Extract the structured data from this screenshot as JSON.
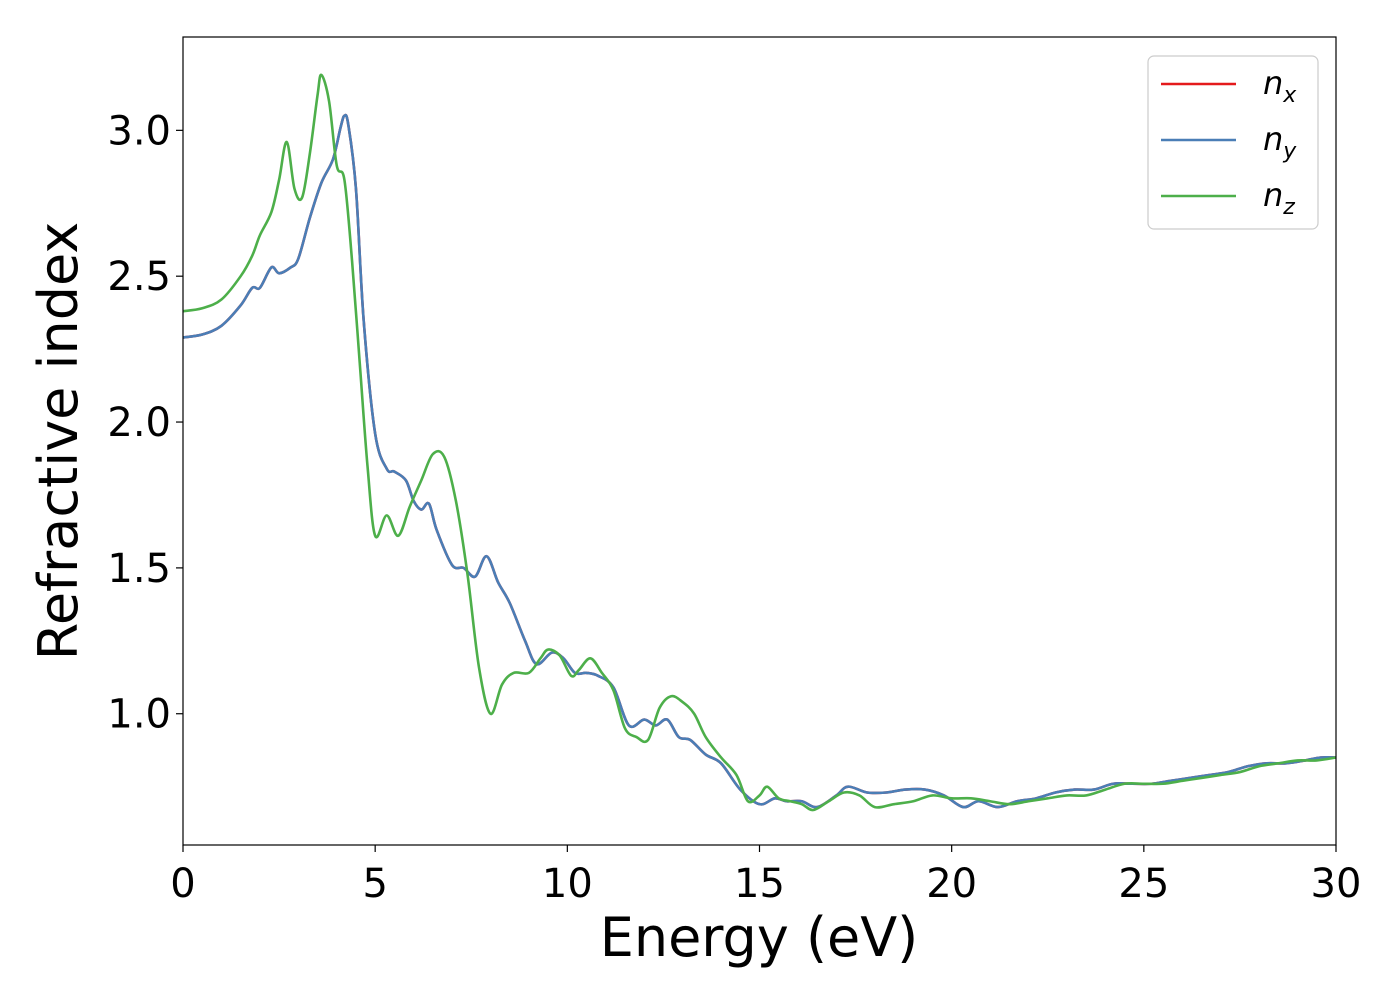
{
  "chart_data": {
    "type": "line",
    "xlabel": "Energy (eV)",
    "ylabel": "Refractive index",
    "xlim": [
      0,
      30
    ],
    "ylim": [
      0.55,
      3.32
    ],
    "xticks": [
      0,
      5,
      10,
      15,
      20,
      25,
      30
    ],
    "xtick_labels": [
      "0",
      "5",
      "10",
      "15",
      "20",
      "25",
      "30"
    ],
    "yticks": [
      1.0,
      1.5,
      2.0,
      2.5,
      3.0
    ],
    "ytick_labels": [
      "1.0",
      "1.5",
      "2.0",
      "2.5",
      "3.0"
    ],
    "grid": false,
    "legend_position": "top-right",
    "series": [
      {
        "name": "n_x",
        "legend_base": "n",
        "legend_sub": "x",
        "color": "#e41a1c",
        "x": [
          0,
          0.5,
          1.0,
          1.5,
          1.8,
          2.0,
          2.3,
          2.5,
          2.8,
          3.0,
          3.3,
          3.6,
          3.9,
          4.1,
          4.2,
          4.3,
          4.5,
          4.7,
          5.0,
          5.3,
          5.5,
          5.8,
          6.0,
          6.2,
          6.4,
          6.6,
          7.0,
          7.3,
          7.6,
          7.9,
          8.2,
          8.5,
          8.9,
          9.2,
          9.6,
          9.9,
          10.2,
          10.5,
          10.8,
          11.2,
          11.6,
          12.0,
          12.3,
          12.6,
          12.9,
          13.2,
          13.6,
          14.0,
          14.5,
          15.0,
          15.4,
          15.7,
          16.1,
          16.5,
          17.0,
          17.3,
          17.8,
          18.3,
          18.8,
          19.3,
          19.8,
          20.3,
          20.7,
          21.2,
          21.7,
          22.2,
          22.7,
          23.2,
          23.7,
          24.2,
          24.7,
          25.2,
          25.7,
          26.2,
          26.7,
          27.2,
          27.7,
          28.2,
          28.7,
          29.2,
          29.6,
          30.0
        ],
        "y": [
          2.29,
          2.3,
          2.33,
          2.4,
          2.46,
          2.46,
          2.53,
          2.51,
          2.53,
          2.56,
          2.7,
          2.82,
          2.9,
          3.01,
          3.05,
          3.02,
          2.8,
          2.35,
          1.96,
          1.84,
          1.83,
          1.8,
          1.73,
          1.7,
          1.72,
          1.63,
          1.51,
          1.5,
          1.47,
          1.54,
          1.45,
          1.38,
          1.25,
          1.17,
          1.21,
          1.19,
          1.14,
          1.14,
          1.13,
          1.09,
          0.96,
          0.98,
          0.96,
          0.98,
          0.92,
          0.91,
          0.86,
          0.83,
          0.74,
          0.69,
          0.71,
          0.7,
          0.7,
          0.68,
          0.72,
          0.75,
          0.73,
          0.73,
          0.74,
          0.74,
          0.72,
          0.68,
          0.7,
          0.68,
          0.7,
          0.71,
          0.73,
          0.74,
          0.74,
          0.76,
          0.76,
          0.76,
          0.77,
          0.78,
          0.79,
          0.8,
          0.82,
          0.83,
          0.83,
          0.84,
          0.85,
          0.85
        ]
      },
      {
        "name": "n_y",
        "legend_base": "n",
        "legend_sub": "y",
        "color": "#4a7eb6",
        "x": [
          0,
          0.5,
          1.0,
          1.5,
          1.8,
          2.0,
          2.3,
          2.5,
          2.8,
          3.0,
          3.3,
          3.6,
          3.9,
          4.1,
          4.2,
          4.3,
          4.5,
          4.7,
          5.0,
          5.3,
          5.5,
          5.8,
          6.0,
          6.2,
          6.4,
          6.6,
          7.0,
          7.3,
          7.6,
          7.9,
          8.2,
          8.5,
          8.9,
          9.2,
          9.6,
          9.9,
          10.2,
          10.5,
          10.8,
          11.2,
          11.6,
          12.0,
          12.3,
          12.6,
          12.9,
          13.2,
          13.6,
          14.0,
          14.5,
          15.0,
          15.4,
          15.7,
          16.1,
          16.5,
          17.0,
          17.3,
          17.8,
          18.3,
          18.8,
          19.3,
          19.8,
          20.3,
          20.7,
          21.2,
          21.7,
          22.2,
          22.7,
          23.2,
          23.7,
          24.2,
          24.7,
          25.2,
          25.7,
          26.2,
          26.7,
          27.2,
          27.7,
          28.2,
          28.7,
          29.2,
          29.6,
          30.0
        ],
        "y": [
          2.29,
          2.3,
          2.33,
          2.4,
          2.46,
          2.46,
          2.53,
          2.51,
          2.53,
          2.56,
          2.7,
          2.82,
          2.9,
          3.01,
          3.05,
          3.02,
          2.8,
          2.35,
          1.96,
          1.84,
          1.83,
          1.8,
          1.73,
          1.7,
          1.72,
          1.63,
          1.51,
          1.5,
          1.47,
          1.54,
          1.45,
          1.38,
          1.25,
          1.17,
          1.21,
          1.19,
          1.14,
          1.14,
          1.13,
          1.09,
          0.96,
          0.98,
          0.96,
          0.98,
          0.92,
          0.91,
          0.86,
          0.83,
          0.74,
          0.69,
          0.71,
          0.7,
          0.7,
          0.68,
          0.72,
          0.75,
          0.73,
          0.73,
          0.74,
          0.74,
          0.72,
          0.68,
          0.7,
          0.68,
          0.7,
          0.71,
          0.73,
          0.74,
          0.74,
          0.76,
          0.76,
          0.76,
          0.77,
          0.78,
          0.79,
          0.8,
          0.82,
          0.83,
          0.83,
          0.84,
          0.85,
          0.85
        ]
      },
      {
        "name": "n_z",
        "legend_base": "n",
        "legend_sub": "z",
        "color": "#4daf4a",
        "x": [
          0,
          0.5,
          1.0,
          1.5,
          1.8,
          2.0,
          2.3,
          2.5,
          2.7,
          2.9,
          3.1,
          3.3,
          3.5,
          3.6,
          3.8,
          4.0,
          4.2,
          4.4,
          4.6,
          4.8,
          5.0,
          5.3,
          5.6,
          5.9,
          6.2,
          6.5,
          6.8,
          7.1,
          7.4,
          7.7,
          8.0,
          8.3,
          8.6,
          9.0,
          9.3,
          9.5,
          9.8,
          10.1,
          10.3,
          10.6,
          10.9,
          11.2,
          11.5,
          11.8,
          12.1,
          12.4,
          12.7,
          13.0,
          13.3,
          13.6,
          14.0,
          14.4,
          14.7,
          15.0,
          15.2,
          15.5,
          15.8,
          16.1,
          16.4,
          16.8,
          17.2,
          17.6,
          18.0,
          18.5,
          19.0,
          19.5,
          20.0,
          20.5,
          21.0,
          21.5,
          22.0,
          22.5,
          23.0,
          23.5,
          24.0,
          24.5,
          25.0,
          25.5,
          26.0,
          26.5,
          27.0,
          27.5,
          28.0,
          28.5,
          29.0,
          29.5,
          30.0
        ],
        "y": [
          2.38,
          2.39,
          2.42,
          2.5,
          2.57,
          2.64,
          2.72,
          2.83,
          2.96,
          2.8,
          2.77,
          2.92,
          3.12,
          3.19,
          3.1,
          2.88,
          2.83,
          2.55,
          2.2,
          1.85,
          1.61,
          1.68,
          1.61,
          1.71,
          1.8,
          1.89,
          1.88,
          1.73,
          1.48,
          1.16,
          1.0,
          1.1,
          1.14,
          1.14,
          1.19,
          1.22,
          1.2,
          1.13,
          1.15,
          1.19,
          1.14,
          1.08,
          0.95,
          0.92,
          0.91,
          1.02,
          1.06,
          1.04,
          1.0,
          0.92,
          0.85,
          0.79,
          0.7,
          0.72,
          0.75,
          0.71,
          0.7,
          0.69,
          0.67,
          0.7,
          0.73,
          0.72,
          0.68,
          0.69,
          0.7,
          0.72,
          0.71,
          0.71,
          0.7,
          0.69,
          0.7,
          0.71,
          0.72,
          0.72,
          0.74,
          0.76,
          0.76,
          0.76,
          0.77,
          0.78,
          0.79,
          0.8,
          0.82,
          0.83,
          0.84,
          0.84,
          0.85
        ]
      }
    ]
  }
}
